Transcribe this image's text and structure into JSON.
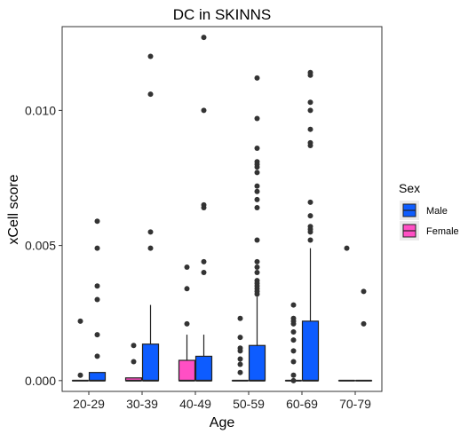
{
  "chart_data": {
    "type": "boxplot",
    "title": "DC in SKINNS",
    "xlabel": "Age",
    "ylabel": "xCell score",
    "categories": [
      "20-29",
      "30-39",
      "40-49",
      "50-59",
      "60-69",
      "70-79"
    ],
    "ylim": [
      -0.0004,
      0.0131
    ],
    "yticks": [
      0.0,
      0.005,
      0.01
    ],
    "ytick_labels": [
      "0.000",
      "0.005",
      "0.010"
    ],
    "grid": false,
    "legend": {
      "title": "Sex",
      "position": "right"
    },
    "series": [
      {
        "name": "Male",
        "color": "#0d5cff",
        "boxes": [
          {
            "category": "20-29",
            "whisker_low": 0,
            "q1": 0,
            "median": 0,
            "q3": 0.0003,
            "whisker_high": 0.0003,
            "outliers": [
              0.0059,
              0.0049,
              0.0035,
              0.003,
              0.0017,
              0.0009
            ]
          },
          {
            "category": "30-39",
            "whisker_low": 0,
            "q1": 0,
            "median": 0,
            "q3": 0.00135,
            "whisker_high": 0.0028,
            "outliers": [
              0.012,
              0.0106,
              0.0055,
              0.0049
            ]
          },
          {
            "category": "40-49",
            "whisker_low": 0,
            "q1": 0,
            "median": 0,
            "q3": 0.0009,
            "whisker_high": 0.0017,
            "outliers": [
              0.0127,
              0.01,
              0.0065,
              0.0064,
              0.0044,
              0.004
            ]
          },
          {
            "category": "50-59",
            "whisker_low": 0,
            "q1": 0,
            "median": 0,
            "q3": 0.0013,
            "whisker_high": 0.0031,
            "outliers": [
              0.0112,
              0.0097,
              0.0086,
              0.0081,
              0.008,
              0.0079,
              0.0077,
              0.0072,
              0.007,
              0.0067,
              0.0064,
              0.0052,
              0.0044,
              0.0042,
              0.004,
              0.0037,
              0.0036,
              0.0035,
              0.0034,
              0.0033,
              0.0032
            ]
          },
          {
            "category": "60-69",
            "whisker_low": 0,
            "q1": 0,
            "median": 0,
            "q3": 0.0022,
            "whisker_high": 0.0049,
            "outliers": [
              0.0114,
              0.0113,
              0.0103,
              0.01,
              0.0093,
              0.0088,
              0.0087,
              0.0066,
              0.0061,
              0.0057,
              0.0056,
              0.0055,
              0.0052
            ]
          },
          {
            "category": "70-79",
            "whisker_low": 0,
            "q1": 0,
            "median": 0,
            "q3": 0,
            "whisker_high": 0,
            "outliers": [
              0.0033,
              0.0021
            ]
          }
        ]
      },
      {
        "name": "Female",
        "color": "#ff4fc4",
        "boxes": [
          {
            "category": "20-29",
            "whisker_low": 0,
            "q1": 0,
            "median": 0,
            "q3": 0,
            "whisker_high": 0,
            "outliers": [
              0.0022,
              0.0002
            ]
          },
          {
            "category": "30-39",
            "whisker_low": 0,
            "q1": 0,
            "median": 0,
            "q3": 0.0001,
            "whisker_high": 0.0001,
            "outliers": [
              0.0013,
              0.0007
            ]
          },
          {
            "category": "40-49",
            "whisker_low": 0,
            "q1": 0,
            "median": 0,
            "q3": 0.00075,
            "whisker_high": 0.0017,
            "outliers": [
              0.0042,
              0.0034,
              0.0021
            ]
          },
          {
            "category": "50-59",
            "whisker_low": 0,
            "q1": 0,
            "median": 0,
            "q3": 0,
            "whisker_high": 0,
            "outliers": [
              0.0023,
              0.0016,
              0.0012,
              0.0011,
              0.0008,
              0.0006,
              0.0003
            ]
          },
          {
            "category": "60-69",
            "whisker_low": 0,
            "q1": 0,
            "median": 0,
            "q3": 0,
            "whisker_high": 0,
            "outliers": [
              0.0028,
              0.0023,
              0.0022,
              0.0021,
              0.0018,
              0.0015,
              0.0011,
              0.0007,
              0.0002,
              0.0
            ]
          },
          {
            "category": "70-79",
            "whisker_low": 0,
            "q1": 0,
            "median": 0,
            "q3": 0,
            "whisker_high": 0,
            "outliers": [
              0.0049
            ]
          }
        ]
      }
    ]
  }
}
